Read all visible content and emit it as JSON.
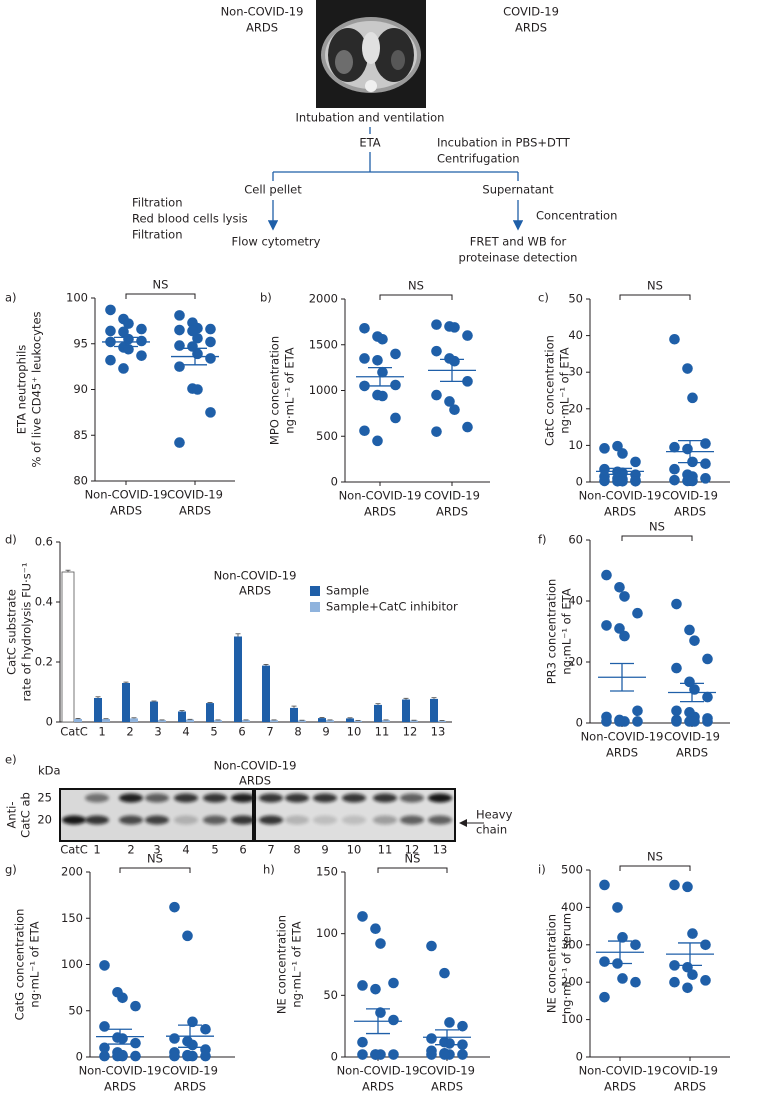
{
  "diagram": {
    "left_group": [
      "Non-COVID-19",
      "ARDS"
    ],
    "right_group": [
      "COVID-19",
      "ARDS"
    ],
    "step1": "Intubation and ventilation",
    "step2": "ETA",
    "step2_note": [
      "Incubation in PBS+DTT",
      "Centrifugation"
    ],
    "left_branch": "Cell pellet",
    "right_branch": "Supernatant",
    "left_note": [
      "Filtration",
      "Red blood cells lysis",
      "Filtration"
    ],
    "right_note": "Concentration",
    "left_result": "Flow cytometry",
    "right_result": [
      "FRET and WB for",
      "proteinase detection"
    ]
  },
  "blot": {
    "label": "e)",
    "unit": "kDa",
    "markers": [
      "25",
      "20"
    ],
    "antibody": [
      "Anti-",
      "CatC ab"
    ],
    "title": [
      "Non-COVID-19",
      "ARDS"
    ],
    "lanes": [
      "CatC",
      "1",
      "2",
      "3",
      "4",
      "5",
      "6",
      "7",
      "8",
      "9",
      "10",
      "11",
      "12",
      "13"
    ],
    "annotation": [
      "Heavy",
      "chain"
    ]
  },
  "chart_data": [
    {
      "type": "strip",
      "label": "a)",
      "ylabel": [
        "ETA neutrophils",
        "% of live CD45⁺ leukocytes"
      ],
      "significance": "NS",
      "categories": [
        [
          "Non-COVID-19",
          "ARDS"
        ],
        [
          "COVID-19",
          "ARDS"
        ]
      ],
      "color": "#1f5fa8",
      "groups": [
        {
          "values": [
            98.7,
            97.7,
            97.2,
            96.6,
            96.4,
            96.3,
            95.5,
            95.3,
            95.2,
            94.6,
            94.4,
            93.7,
            93.2,
            92.3
          ],
          "mean": 95.2,
          "sem": 0.5
        },
        {
          "values": [
            98.1,
            97.3,
            96.7,
            96.6,
            96.5,
            96.4,
            95.6,
            95.2,
            94.8,
            94.7,
            93.9,
            93.4,
            92.5,
            90.1,
            90.0,
            87.5,
            84.2
          ],
          "mean": 93.6,
          "sem": 0.9
        }
      ],
      "ylim": [
        80,
        100
      ],
      "yticks": [
        80,
        85,
        90,
        95,
        100
      ]
    },
    {
      "type": "strip",
      "label": "b)",
      "ylabel": [
        "MPO concentration",
        "ng·mL⁻¹ of ETA"
      ],
      "significance": "NS",
      "categories": [
        [
          "Non-COVID-19",
          "ARDS"
        ],
        [
          "COVID-19",
          "ARDS"
        ]
      ],
      "color": "#1f5fa8",
      "groups": [
        {
          "values": [
            1680,
            1590,
            1560,
            1400,
            1350,
            1330,
            1200,
            1060,
            1050,
            950,
            940,
            700,
            560,
            450
          ],
          "mean": 1150,
          "sem": 100
        },
        {
          "values": [
            1720,
            1700,
            1690,
            1600,
            1430,
            1350,
            1320,
            1100,
            950,
            880,
            790,
            600,
            550
          ],
          "mean": 1220,
          "sem": 120
        }
      ],
      "ylim": [
        0,
        2000
      ],
      "yticks": [
        0,
        500,
        1000,
        1500,
        2000
      ]
    },
    {
      "type": "strip",
      "label": "c)",
      "ylabel": [
        "CatC concentration",
        "ng·mL⁻¹ of ETA"
      ],
      "significance": "NS",
      "categories": [
        [
          "Non-COVID-19",
          "ARDS"
        ],
        [
          "COVID-19",
          "ARDS"
        ]
      ],
      "color": "#1f5fa8",
      "groups": [
        {
          "values": [
            9.2,
            9.8,
            7.8,
            5.5,
            3.5,
            2.8,
            2.5,
            2.0,
            1.5,
            1.0,
            0.8,
            0.5,
            0.3,
            0.2,
            0.2,
            0.2
          ],
          "mean": 2.9,
          "sem": 0.8
        },
        {
          "values": [
            39,
            31,
            23,
            10.5,
            9.5,
            9,
            5.5,
            5,
            3.5,
            2,
            1.5,
            1,
            0.5,
            0.3,
            0.3
          ],
          "mean": 8.3,
          "sem": 3
        }
      ],
      "ylim": [
        0,
        50
      ],
      "yticks": [
        0,
        10,
        20,
        30,
        40,
        50
      ]
    },
    {
      "type": "bar",
      "label": "d)",
      "ylabel": [
        "CatC substrate",
        "rate of hydrolysis FU·s⁻¹"
      ],
      "title": [
        "Non-COVID-19",
        "ARDS"
      ],
      "categories": [
        "CatC",
        "1",
        "2",
        "3",
        "4",
        "5",
        "6",
        "7",
        "8",
        "9",
        "10",
        "11",
        "12",
        "13"
      ],
      "series": [
        {
          "name": "Sample",
          "color": "#1f5fa8",
          "colors": [
            "#ffffff",
            "#1f5fa8",
            "#1f5fa8",
            "#1f5fa8",
            "#1f5fa8",
            "#1f5fa8",
            "#1f5fa8",
            "#1f5fa8",
            "#1f5fa8",
            "#1f5fa8",
            "#1f5fa8",
            "#1f5fa8",
            "#1f5fa8",
            "#1f5fa8"
          ],
          "values": [
            0.5,
            0.08,
            0.13,
            0.068,
            0.035,
            0.063,
            0.285,
            0.188,
            0.047,
            0.013,
            0.012,
            0.057,
            0.075,
            0.077
          ],
          "errors": [
            0.006,
            0.004,
            0.003,
            0.002,
            0.003,
            0.002,
            0.009,
            0.004,
            0.006,
            0.002,
            0.002,
            0.004,
            0.004,
            0.004
          ]
        },
        {
          "name": "Sample+CatC inhibitor",
          "color": "#8fb3dd",
          "values": [
            0.01,
            0.01,
            0.012,
            0.006,
            0.008,
            0.006,
            0.006,
            0.006,
            0.005,
            0.006,
            0.004,
            0.006,
            0.005,
            0.004
          ],
          "errors": [
            0.002,
            0.001,
            0.002,
            0.001,
            0.001,
            0.001,
            0.001,
            0.001,
            0.001,
            0.001,
            0.001,
            0.001,
            0.001,
            0.001
          ]
        }
      ],
      "ylim": [
        0,
        0.6
      ],
      "yticks": [
        0,
        0.2,
        0.4,
        0.6
      ],
      "legend": "upper right"
    },
    {
      "type": "strip",
      "label": "f)",
      "ylabel": [
        "PR3 concentration",
        "ng·mL⁻¹ of ETA"
      ],
      "significance": "NS",
      "categories": [
        [
          "Non-COVID-19",
          "ARDS"
        ],
        [
          "COVID-19",
          "ARDS"
        ]
      ],
      "color": "#1f5fa8",
      "groups": [
        {
          "values": [
            48.5,
            44.5,
            41.5,
            36,
            32,
            31,
            28.5,
            4,
            2,
            1,
            0.5,
            0.5,
            0.5,
            0.5
          ],
          "mean": 15,
          "sem": 4.5
        },
        {
          "values": [
            39,
            30.5,
            27,
            21,
            18,
            13.5,
            11,
            8.5,
            4,
            3.5,
            2,
            1.5,
            1,
            0.5,
            0.5,
            0.5,
            0.5
          ],
          "mean": 10,
          "sem": 3
        }
      ],
      "ylim": [
        0,
        60
      ],
      "yticks": [
        0,
        20,
        40,
        60
      ]
    },
    {
      "type": "strip",
      "label": "g)",
      "ylabel": [
        "CatG concentration",
        "ng·mL⁻¹ of ETA"
      ],
      "significance": "NS",
      "categories": [
        [
          "Non-COVID-19",
          "ARDS"
        ],
        [
          "COVID-19",
          "ARDS"
        ]
      ],
      "color": "#1f5fa8",
      "groups": [
        {
          "values": [
            99,
            70,
            64,
            55,
            33,
            21,
            20,
            15,
            10,
            5,
            2,
            1,
            1,
            1,
            1
          ],
          "mean": 22,
          "sem": 8
        },
        {
          "values": [
            162,
            131,
            38,
            30,
            20,
            17,
            13,
            8,
            5,
            2,
            1,
            1,
            1,
            1
          ],
          "mean": 22.5,
          "sem": 12
        }
      ],
      "ylim": [
        0,
        200
      ],
      "yticks": [
        0,
        50,
        100,
        150,
        200
      ]
    },
    {
      "type": "strip",
      "label": "h)",
      "ylabel": [
        "NE concentration",
        "ng·mL⁻¹ of ETA"
      ],
      "significance": "NS",
      "categories": [
        [
          "Non-COVID-19",
          "ARDS"
        ],
        [
          "COVID-19",
          "ARDS"
        ]
      ],
      "color": "#1f5fa8",
      "groups": [
        {
          "values": [
            114,
            104,
            92,
            60,
            58,
            55,
            36,
            30,
            12,
            2,
            2,
            2,
            2,
            2
          ],
          "mean": 29,
          "sem": 10
        },
        {
          "values": [
            90,
            68,
            28,
            25,
            15,
            12,
            11,
            10,
            5,
            3,
            2,
            2,
            2,
            2
          ],
          "mean": 16,
          "sem": 6
        }
      ],
      "ylim": [
        0,
        150
      ],
      "yticks": [
        0,
        50,
        100,
        150
      ]
    },
    {
      "type": "strip",
      "label": "i)",
      "ylabel": [
        "NE concentration",
        "ng·mL⁻¹ of serum"
      ],
      "significance": "NS",
      "categories": [
        [
          "Non-COVID-19",
          "ARDS"
        ],
        [
          "COVID-19",
          "ARDS"
        ]
      ],
      "color": "#1f5fa8",
      "groups": [
        {
          "values": [
            460,
            400,
            320,
            300,
            255,
            250,
            210,
            200,
            160
          ],
          "mean": 280,
          "sem": 30
        },
        {
          "values": [
            460,
            455,
            330,
            300,
            245,
            240,
            220,
            205,
            200,
            185
          ],
          "mean": 275,
          "sem": 30
        }
      ],
      "ylim": [
        0,
        500
      ],
      "yticks": [
        0,
        100,
        200,
        300,
        400,
        500
      ]
    }
  ]
}
